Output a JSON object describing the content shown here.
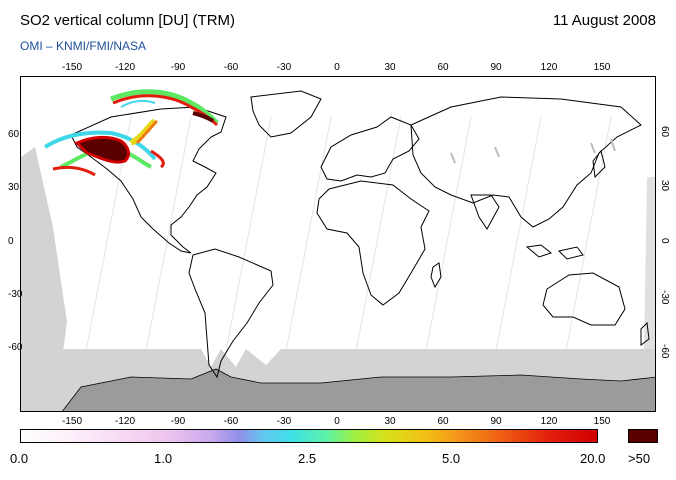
{
  "header": {
    "title": "SO2 vertical column [DU] (TRM)",
    "date": "11 August 2008",
    "source": "OMI  –  KNMI/FMI/NASA"
  },
  "map": {
    "lon_ticks_top": [
      "-150",
      "-120",
      "-90",
      "-60",
      "-30",
      "0",
      "30",
      "60",
      "90",
      "120",
      "150"
    ],
    "lon_ticks_bottom": [
      "-150",
      "-120",
      "-90",
      "-60",
      "-30",
      "0",
      "30",
      "60",
      "90",
      "120",
      "150"
    ],
    "lat_ticks_left": [
      "60",
      "30",
      "0",
      "-30",
      "-60"
    ],
    "lat_ticks_right": [
      "60",
      "30",
      "0",
      "-30",
      "-60"
    ],
    "colors": {
      "land_outline": "#000000",
      "no_data_gray": "#d3d3d3",
      "antarctica_gray": "#9b9b9b",
      "plume_dark": "#5a0000",
      "plume_red": "#d00000",
      "plume_orange": "#f07a10",
      "plume_yellow": "#e8d81a",
      "plume_green": "#5ce860",
      "plume_cyan": "#40d8e8"
    }
  },
  "colorbar": {
    "labels": [
      "0.0",
      "1.0",
      "2.5",
      "5.0",
      "20.0"
    ],
    "max_label": ">50",
    "max_color": "#5a0000"
  }
}
